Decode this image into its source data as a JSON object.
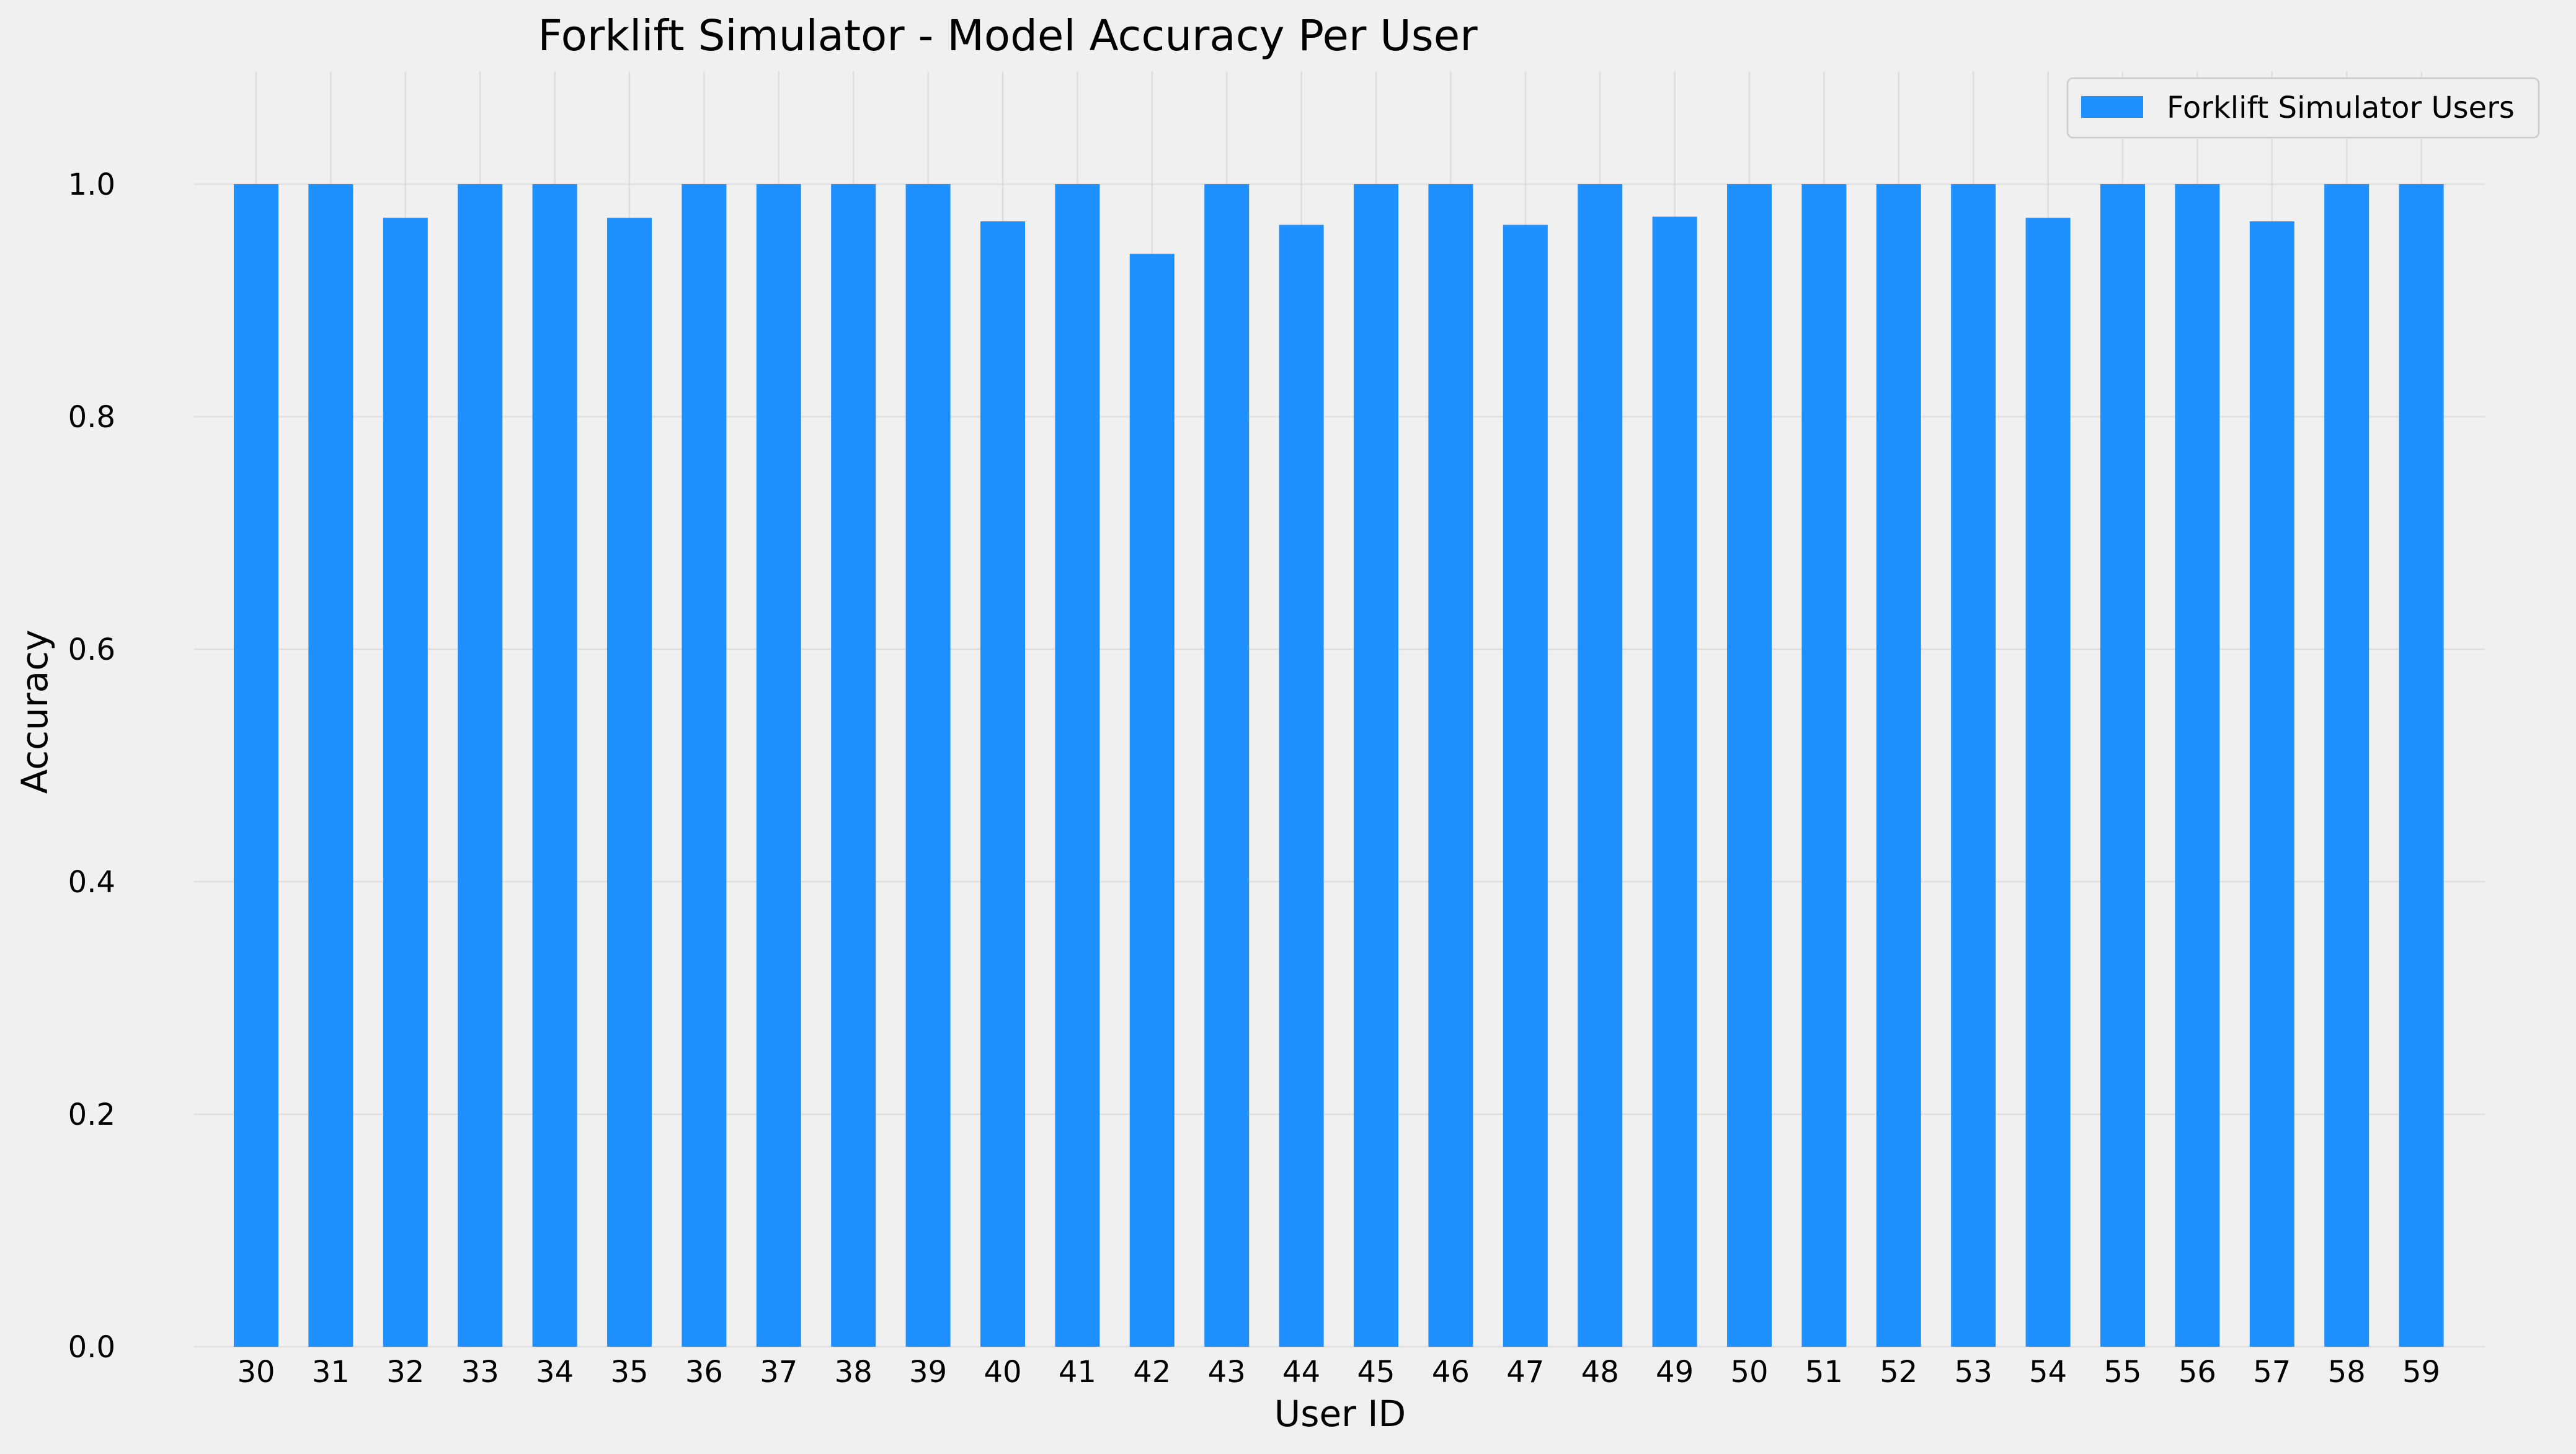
{
  "chart_data": {
    "type": "bar",
    "title": "Forklift Simulator - Model Accuracy Per User",
    "xlabel": "User ID",
    "ylabel": "Accuracy",
    "ylim": [
      0,
      1.1
    ],
    "yticks": [
      0.0,
      0.2,
      0.4,
      0.6,
      0.8,
      1.0
    ],
    "ytick_labels": [
      "0.0",
      "0.2",
      "0.4",
      "0.6",
      "0.8",
      "1.0"
    ],
    "grid": true,
    "legend_position": "top-right",
    "categories": [
      "30",
      "31",
      "32",
      "33",
      "34",
      "35",
      "36",
      "37",
      "38",
      "39",
      "40",
      "41",
      "42",
      "43",
      "44",
      "45",
      "46",
      "47",
      "48",
      "49",
      "50",
      "51",
      "52",
      "53",
      "54",
      "55",
      "56",
      "57",
      "58",
      "59"
    ],
    "series": [
      {
        "name": "Forklift Simulator Users",
        "color": "#1e90ff",
        "values": [
          1.0,
          1.0,
          0.971,
          1.0,
          1.0,
          0.971,
          1.0,
          1.0,
          1.0,
          1.0,
          0.968,
          1.0,
          0.94,
          1.0,
          0.965,
          1.0,
          1.0,
          0.965,
          1.0,
          0.972,
          1.0,
          1.0,
          1.0,
          1.0,
          0.971,
          1.0,
          1.0,
          0.968,
          1.0,
          1.0
        ]
      }
    ]
  }
}
